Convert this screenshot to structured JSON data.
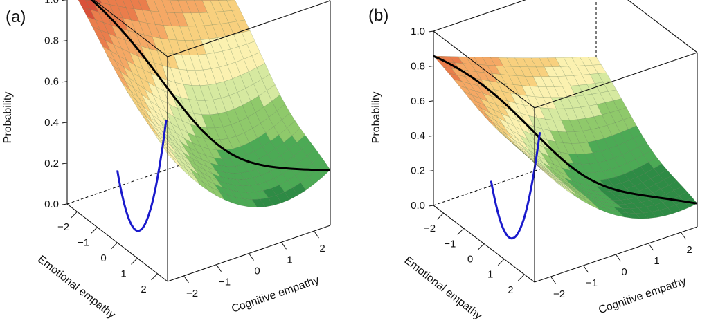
{
  "chart_data": [
    {
      "type": "surface3d",
      "panel_label": "(a)",
      "zlabel": "Probability",
      "xlabel": "Cognitive empathy",
      "ylabel": "Emotional empathy",
      "z_ticks": [
        "0.0",
        "0.2",
        "0.4",
        "0.6",
        "0.8",
        "1.0"
      ],
      "x_ticks": [
        "−2",
        "−1",
        "0",
        "1",
        "2"
      ],
      "y_ticks": [
        "−2",
        "−1",
        "0",
        "1",
        "2"
      ],
      "zlim": [
        0,
        1.1
      ],
      "xlim": [
        -2.5,
        2.5
      ],
      "ylim": [
        -2.5,
        2.5
      ],
      "model": {
        "a": 0.22,
        "c_back": 1.1,
        "c_front": 0.58,
        "c_right": 0.3,
        "c_ymid": 0.5
      },
      "highlight_curves": [
        {
          "name": "",
          "color": "#000000",
          "along": "diagonal"
        },
        {
          "name": "",
          "color": "#1a1acc",
          "along": "cognitive"
        }
      ],
      "palette": [
        "#1e6e35",
        "#2e8b45",
        "#4caa55",
        "#8fc96b",
        "#d6e9a0",
        "#fbf1b0",
        "#f8d07e",
        "#f5a865",
        "#ea7d4c",
        "#d9513a"
      ]
    },
    {
      "type": "surface3d",
      "panel_label": "(b)",
      "zlabel": "Probability",
      "xlabel": "Cognitive empathy",
      "ylabel": "Emotional empathy",
      "z_ticks": [
        "0.0",
        "0.2",
        "0.4",
        "0.6",
        "0.8",
        "1.0"
      ],
      "x_ticks": [
        "−2",
        "−1",
        "0",
        "1",
        "2"
      ],
      "y_ticks": [
        "−2",
        "−1",
        "0",
        "1",
        "2"
      ],
      "zlim": [
        0,
        1.0
      ],
      "xlim": [
        -2.5,
        2.5
      ],
      "ylim": [
        -2.5,
        2.5
      ],
      "model": {
        "a": 0.18,
        "c_back": 0.86,
        "c_front": 0.65,
        "c_right": 0.16,
        "c_ymid": 0.43
      },
      "highlight_curves": [
        {
          "name": "",
          "color": "#000000",
          "along": "diagonal"
        },
        {
          "name": "",
          "color": "#1a1acc",
          "along": "cognitive"
        }
      ],
      "palette": [
        "#1e6e35",
        "#2e8b45",
        "#4caa55",
        "#8fc96b",
        "#d6e9a0",
        "#fbf1b0",
        "#f8d07e",
        "#f5a865",
        "#ea7d4c",
        "#d9513a"
      ]
    }
  ]
}
